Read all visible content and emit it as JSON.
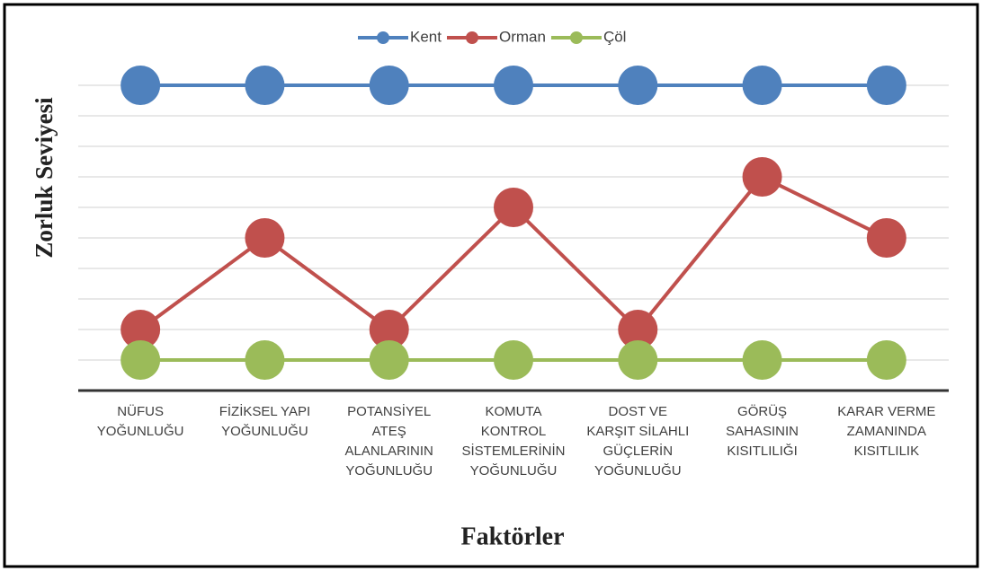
{
  "chart_data": {
    "type": "line",
    "x_label": "Faktörler",
    "y_label": "Zorluk Seviyesi",
    "categories": [
      "NÜFUS YOĞUNLUĞU",
      "FİZİKSEL YAPI YOĞUNLUĞU",
      "POTANSİYEL ATEŞ ALANLARININ YOĞUNLUĞU",
      "KOMUTA KONTROL SİSTEMLERİNİN YOĞUNLUĞU",
      "DOST VE KARŞIT SİLAHLI GÜÇLERİN YOĞUNLUĞU",
      "GÖRÜŞ SAHASININ KISITLILIĞI",
      "KARAR VERME ZAMANINDA KISITLILIK"
    ],
    "series": [
      {
        "name": "Kent",
        "color": "#4f81bd",
        "values": [
          10,
          10,
          10,
          10,
          10,
          10,
          10
        ]
      },
      {
        "name": "Orman",
        "color": "#c0504d",
        "values": [
          2,
          5,
          2,
          6,
          2,
          7,
          5
        ]
      },
      {
        "name": "Çöl",
        "color": "#9bbb59",
        "values": [
          1,
          1,
          1,
          1,
          1,
          1,
          1
        ]
      }
    ],
    "ylim": [
      0,
      10
    ],
    "yticks": [
      1,
      2,
      3,
      4,
      5,
      6,
      7,
      8,
      9,
      10
    ],
    "grid": true,
    "legend": "top"
  }
}
